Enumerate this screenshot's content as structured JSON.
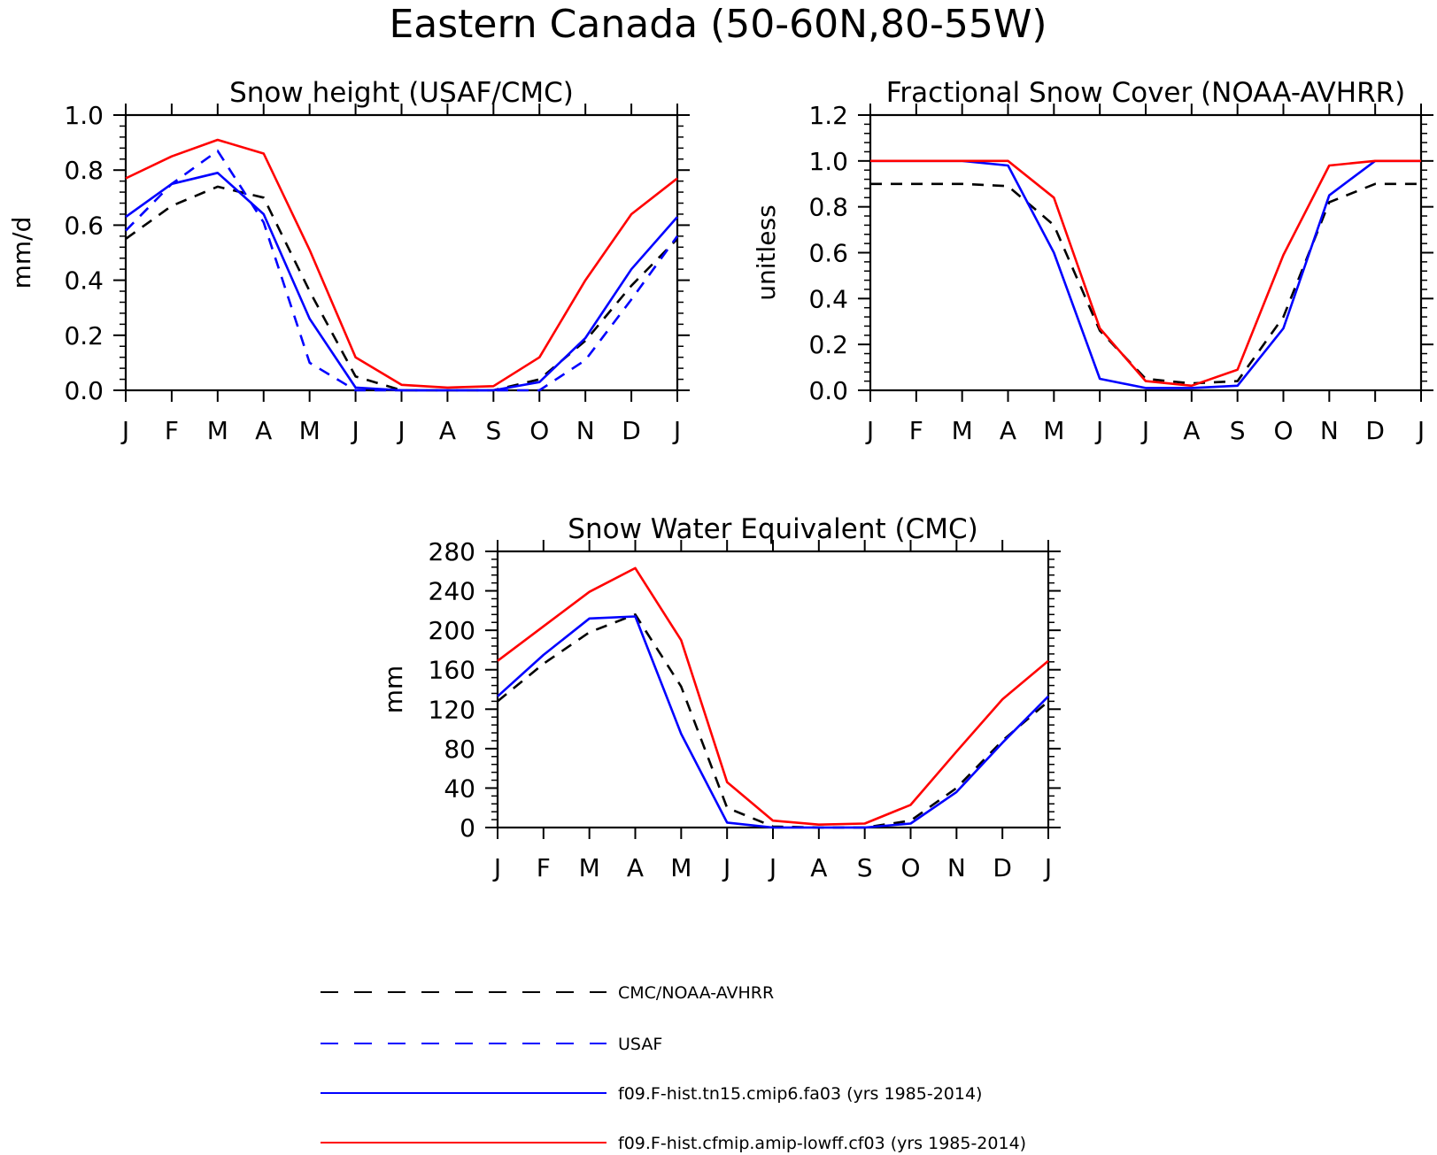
{
  "title": "Eastern Canada (50-60N,80-55W)",
  "legend": [
    {
      "label": "CMC/NOAA-AVHRR",
      "color": "#000000",
      "style": "dashed"
    },
    {
      "label": "USAF",
      "color": "#0000ff",
      "style": "dashed"
    },
    {
      "label": "f09.F-hist.tn15.cmip6.fa03 (yrs 1985-2014)",
      "color": "#0000ff",
      "style": "solid"
    },
    {
      "label": "f09.F-hist.cfmip.amip-lowff.cf03 (yrs 1985-2014)",
      "color": "#ff0000",
      "style": "solid"
    }
  ],
  "chart_data": [
    {
      "type": "line",
      "title": "Snow height (USAF/CMC)",
      "xlabel": "",
      "ylabel": "mm/d",
      "categories": [
        "J",
        "F",
        "M",
        "A",
        "M",
        "J",
        "J",
        "A",
        "S",
        "O",
        "N",
        "D",
        "J"
      ],
      "ylim": [
        0,
        1.0
      ],
      "yticks": [
        "0.0",
        "0.2",
        "0.4",
        "0.6",
        "0.8",
        "1.0"
      ],
      "grid": false,
      "series": [
        {
          "name": "CMC/NOAA-AVHRR",
          "color": "#000000",
          "style": "dashed",
          "values": [
            0.55,
            0.67,
            0.74,
            0.7,
            0.36,
            0.05,
            0.0,
            0.0,
            0.0,
            0.04,
            0.18,
            0.38,
            0.55
          ]
        },
        {
          "name": "USAF",
          "color": "#0000ff",
          "style": "dashed",
          "values": [
            0.58,
            0.75,
            0.87,
            0.61,
            0.1,
            0.0,
            0.0,
            0.0,
            0.0,
            0.0,
            0.11,
            0.33,
            0.56
          ]
        },
        {
          "name": "f09.F-hist.tn15.cmip6.fa03 (yrs 1985-2014)",
          "color": "#0000ff",
          "style": "solid",
          "values": [
            0.63,
            0.75,
            0.79,
            0.64,
            0.26,
            0.01,
            0.0,
            0.0,
            0.0,
            0.03,
            0.19,
            0.44,
            0.63
          ]
        },
        {
          "name": "f09.F-hist.cfmip.amip-lowff.cf03 (yrs 1985-2014)",
          "color": "#ff0000",
          "style": "solid",
          "values": [
            0.77,
            0.85,
            0.91,
            0.86,
            0.51,
            0.12,
            0.02,
            0.01,
            0.015,
            0.12,
            0.4,
            0.64,
            0.77
          ]
        }
      ]
    },
    {
      "type": "line",
      "title": "Fractional Snow Cover (NOAA-AVHRR)",
      "xlabel": "",
      "ylabel": "unitless",
      "categories": [
        "J",
        "F",
        "M",
        "A",
        "M",
        "J",
        "J",
        "A",
        "S",
        "O",
        "N",
        "D",
        "J"
      ],
      "ylim": [
        0,
        1.2
      ],
      "yticks": [
        "0.0",
        "0.2",
        "0.4",
        "0.6",
        "0.8",
        "1.0",
        "1.2"
      ],
      "grid": false,
      "series": [
        {
          "name": "CMC/NOAA-AVHRR",
          "color": "#000000",
          "style": "dashed",
          "values": [
            0.9,
            0.9,
            0.9,
            0.89,
            0.72,
            0.26,
            0.05,
            0.03,
            0.04,
            0.32,
            0.82,
            0.9,
            0.9
          ]
        },
        {
          "name": "f09.F-hist.tn15.cmip6.fa03 (yrs 1985-2014)",
          "color": "#0000ff",
          "style": "solid",
          "values": [
            1.0,
            1.0,
            1.0,
            0.98,
            0.6,
            0.05,
            0.01,
            0.01,
            0.02,
            0.27,
            0.85,
            1.0,
            1.0
          ]
        },
        {
          "name": "f09.F-hist.cfmip.amip-lowff.cf03 (yrs 1985-2014)",
          "color": "#ff0000",
          "style": "solid",
          "values": [
            1.0,
            1.0,
            1.0,
            1.0,
            0.84,
            0.27,
            0.04,
            0.02,
            0.09,
            0.59,
            0.98,
            1.0,
            1.0
          ]
        }
      ]
    },
    {
      "type": "line",
      "title": "Snow Water Equivalent (CMC)",
      "xlabel": "",
      "ylabel": "mm",
      "categories": [
        "J",
        "F",
        "M",
        "A",
        "M",
        "J",
        "J",
        "A",
        "S",
        "O",
        "N",
        "D",
        "J"
      ],
      "ylim": [
        0,
        280
      ],
      "yticks": [
        "0",
        "40",
        "80",
        "120",
        "160",
        "200",
        "240",
        "280"
      ],
      "grid": false,
      "series": [
        {
          "name": "CMC/NOAA-AVHRR",
          "color": "#000000",
          "style": "dashed",
          "values": [
            128,
            166,
            198,
            216,
            143,
            20,
            1,
            0,
            0,
            7,
            40,
            88,
            128
          ]
        },
        {
          "name": "f09.F-hist.tn15.cmip6.fa03 (yrs 1985-2014)",
          "color": "#0000ff",
          "style": "solid",
          "values": [
            133,
            175,
            212,
            214,
            95,
            5,
            0,
            0,
            0,
            4,
            36,
            86,
            133
          ]
        },
        {
          "name": "f09.F-hist.cfmip.amip-lowff.cf03 (yrs 1985-2014)",
          "color": "#ff0000",
          "style": "solid",
          "values": [
            169,
            204,
            239,
            263,
            190,
            46,
            7,
            3,
            4,
            23,
            77,
            130,
            169
          ]
        }
      ]
    }
  ]
}
